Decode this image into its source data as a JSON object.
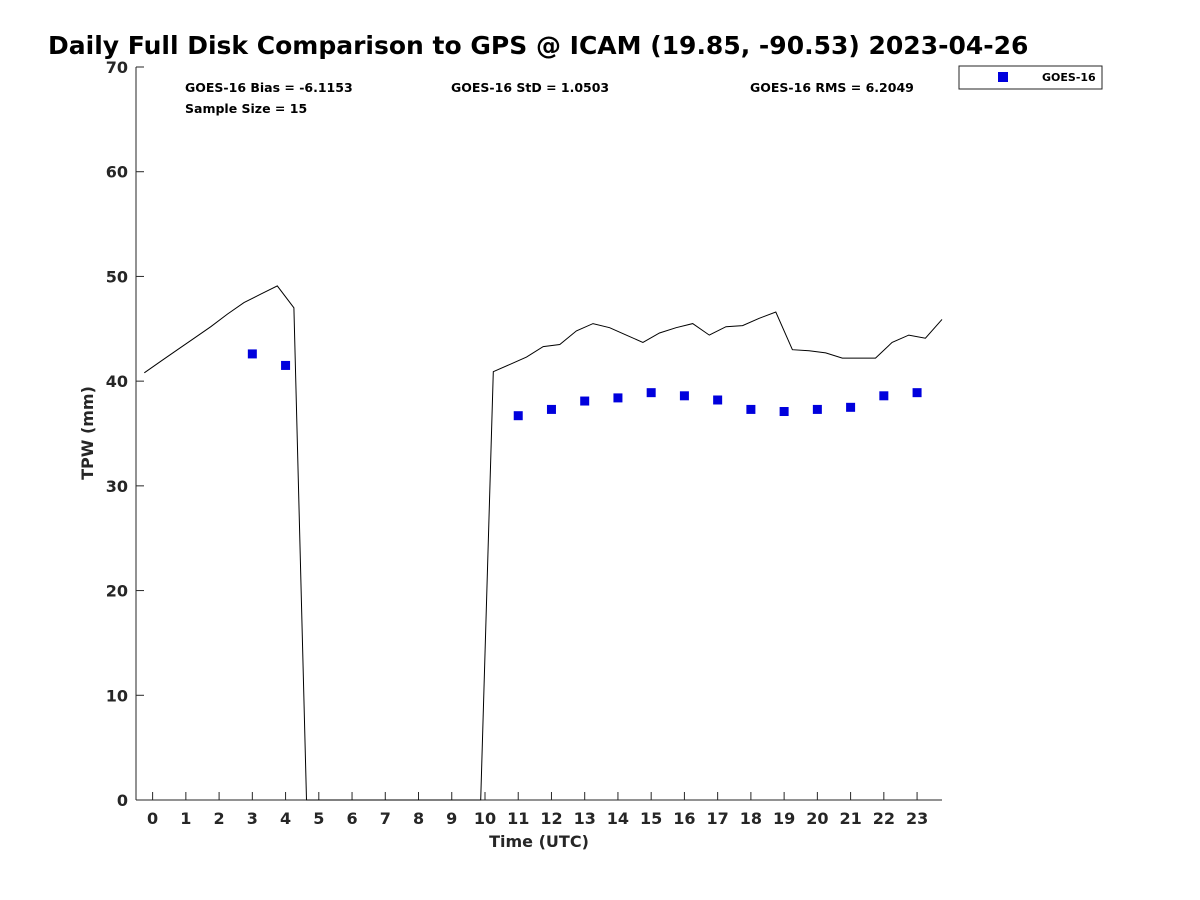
{
  "chart_data": {
    "type": "scatter",
    "title": "Daily Full Disk Comparison to GPS @ ICAM (19.85, -90.53) 2023-04-26",
    "xlabel": "Time (UTC)",
    "ylabel": "TPW (mm)",
    "xlim": [
      -0.5,
      23.75
    ],
    "ylim": [
      0,
      70
    ],
    "x_ticks": [
      "0",
      "1",
      "2",
      "3",
      "4",
      "5",
      "6",
      "7",
      "8",
      "9",
      "10",
      "11",
      "12",
      "13",
      "14",
      "15",
      "16",
      "17",
      "18",
      "19",
      "20",
      "21",
      "22",
      "23"
    ],
    "y_ticks": [
      "0",
      "10",
      "20",
      "30",
      "40",
      "50",
      "60",
      "70"
    ],
    "grid": false,
    "legend_position": "outside-top-right",
    "stats": {
      "bias": "GOES-16 Bias = -6.1153",
      "std": "GOES-16 StD = 1.0503",
      "rms": "GOES-16 RMS = 6.2049",
      "sample": "Sample Size = 15"
    },
    "series": [
      {
        "name": "GOES-16",
        "kind": "scatter",
        "color": "#0000dd",
        "marker": "square",
        "x": [
          3,
          4,
          11,
          12,
          13,
          14,
          15,
          16,
          17,
          18,
          19,
          20,
          21,
          22,
          23
        ],
        "y": [
          42.6,
          41.5,
          36.7,
          37.3,
          38.1,
          38.4,
          38.9,
          38.6,
          38.2,
          37.3,
          37.1,
          37.3,
          37.5,
          38.6,
          38.9
        ]
      },
      {
        "kind": "line",
        "color": "#000000",
        "x": [
          -0.25,
          0.25,
          0.75,
          1.25,
          1.75,
          2.25,
          2.75,
          3.25,
          3.75,
          4.25,
          4.63,
          9.87,
          10.25,
          10.75,
          11.25,
          11.75,
          12.25,
          12.75,
          13.25,
          13.75,
          14.25,
          14.75,
          15.25,
          15.75,
          16.25,
          16.75,
          17.25,
          17.75,
          18.25,
          18.75,
          19.25,
          19.75,
          20.25,
          20.75,
          21.25,
          21.75,
          22.25,
          22.75,
          23.25,
          23.75
        ],
        "y": [
          40.8,
          41.9,
          43.0,
          44.1,
          45.2,
          46.4,
          47.5,
          48.3,
          49.1,
          47.0,
          0,
          0,
          40.9,
          41.6,
          42.3,
          43.3,
          43.5,
          44.8,
          45.5,
          45.1,
          44.4,
          43.7,
          44.6,
          45.1,
          45.5,
          44.4,
          45.2,
          45.3,
          46.0,
          46.6,
          43.0,
          42.9,
          42.7,
          42.2,
          42.2,
          42.2,
          43.7,
          44.4,
          44.1,
          45.9
        ]
      }
    ]
  }
}
